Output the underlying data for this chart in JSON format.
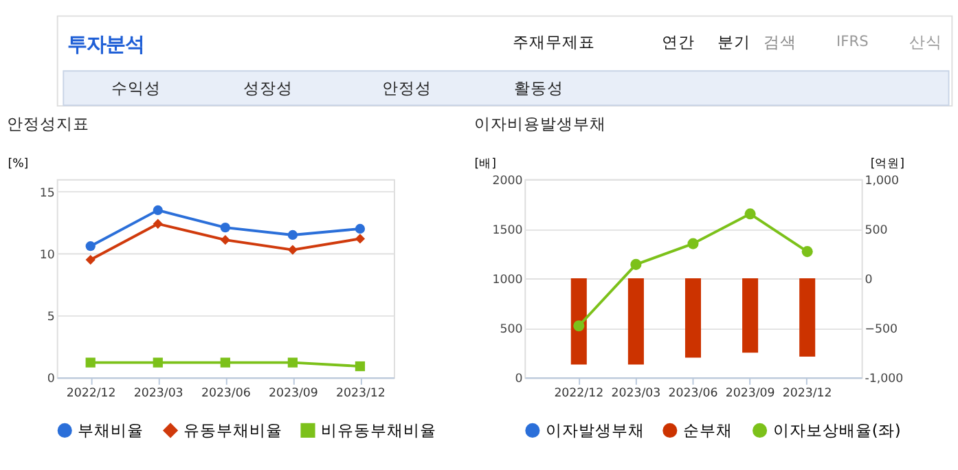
{
  "chart_data": [
    {
      "type": "line",
      "title": "안정성지표",
      "ylabel": "[%]",
      "categories": [
        "2022/12",
        "2023/03",
        "2023/06",
        "2023/09",
        "2023/12"
      ],
      "series": [
        {
          "name": "부채비율",
          "color": "#2b6fd9",
          "marker": "circle",
          "values": [
            10.6,
            13.5,
            12.1,
            11.5,
            12.0
          ]
        },
        {
          "name": "유동부채비율",
          "color": "#d03a0c",
          "marker": "diamond",
          "values": [
            9.5,
            12.4,
            11.1,
            10.3,
            11.2
          ]
        },
        {
          "name": "비유동부채비율",
          "color": "#7cc11a",
          "marker": "square",
          "values": [
            1.2,
            1.2,
            1.2,
            1.2,
            0.9
          ]
        }
      ],
      "ylim": [
        0,
        16
      ],
      "yticks": [
        0,
        5,
        10,
        15
      ],
      "grid": "y",
      "legend": "bottom",
      "annotations": [
        "투자분석",
        "주재무제표",
        "연간",
        "분기",
        "검색",
        "IFRS",
        "산식",
        "수익성",
        "성장성",
        "안정성",
        "활동성"
      ]
    },
    {
      "type": "bar",
      "title": "이자비용발생부채",
      "ylabel": "[배]",
      "y2label": "[억원]",
      "categories": [
        "2022/12",
        "2023/03",
        "2023/06",
        "2023/09",
        "2023/12"
      ],
      "series": [
        {
          "name": "이자발생부채",
          "color": "#2b6fd9",
          "type": "bar",
          "axis": "y2",
          "values": [
            null,
            null,
            null,
            null,
            null
          ]
        },
        {
          "name": "순부채",
          "color": "#cc3300",
          "type": "bar",
          "axis": "y2",
          "values": [
            -870,
            -870,
            -800,
            -750,
            -790
          ]
        },
        {
          "name": "이자보상배율(좌)",
          "color": "#7cc11a",
          "type": "line",
          "marker": "circle",
          "values": [
            520,
            1140,
            1350,
            1650,
            1270
          ]
        }
      ],
      "ylim": [
        0,
        2000
      ],
      "yticks": [
        0,
        500,
        1000,
        1500,
        2000
      ],
      "y2lim": [
        -1000,
        1000
      ],
      "y2ticks": [
        {
          "value": -1000,
          "label": "-1,000"
        },
        -500,
        0,
        500,
        {
          "value": 1000,
          "label": "1,000"
        }
      ],
      "grid": "y",
      "legend": "bottom"
    }
  ]
}
